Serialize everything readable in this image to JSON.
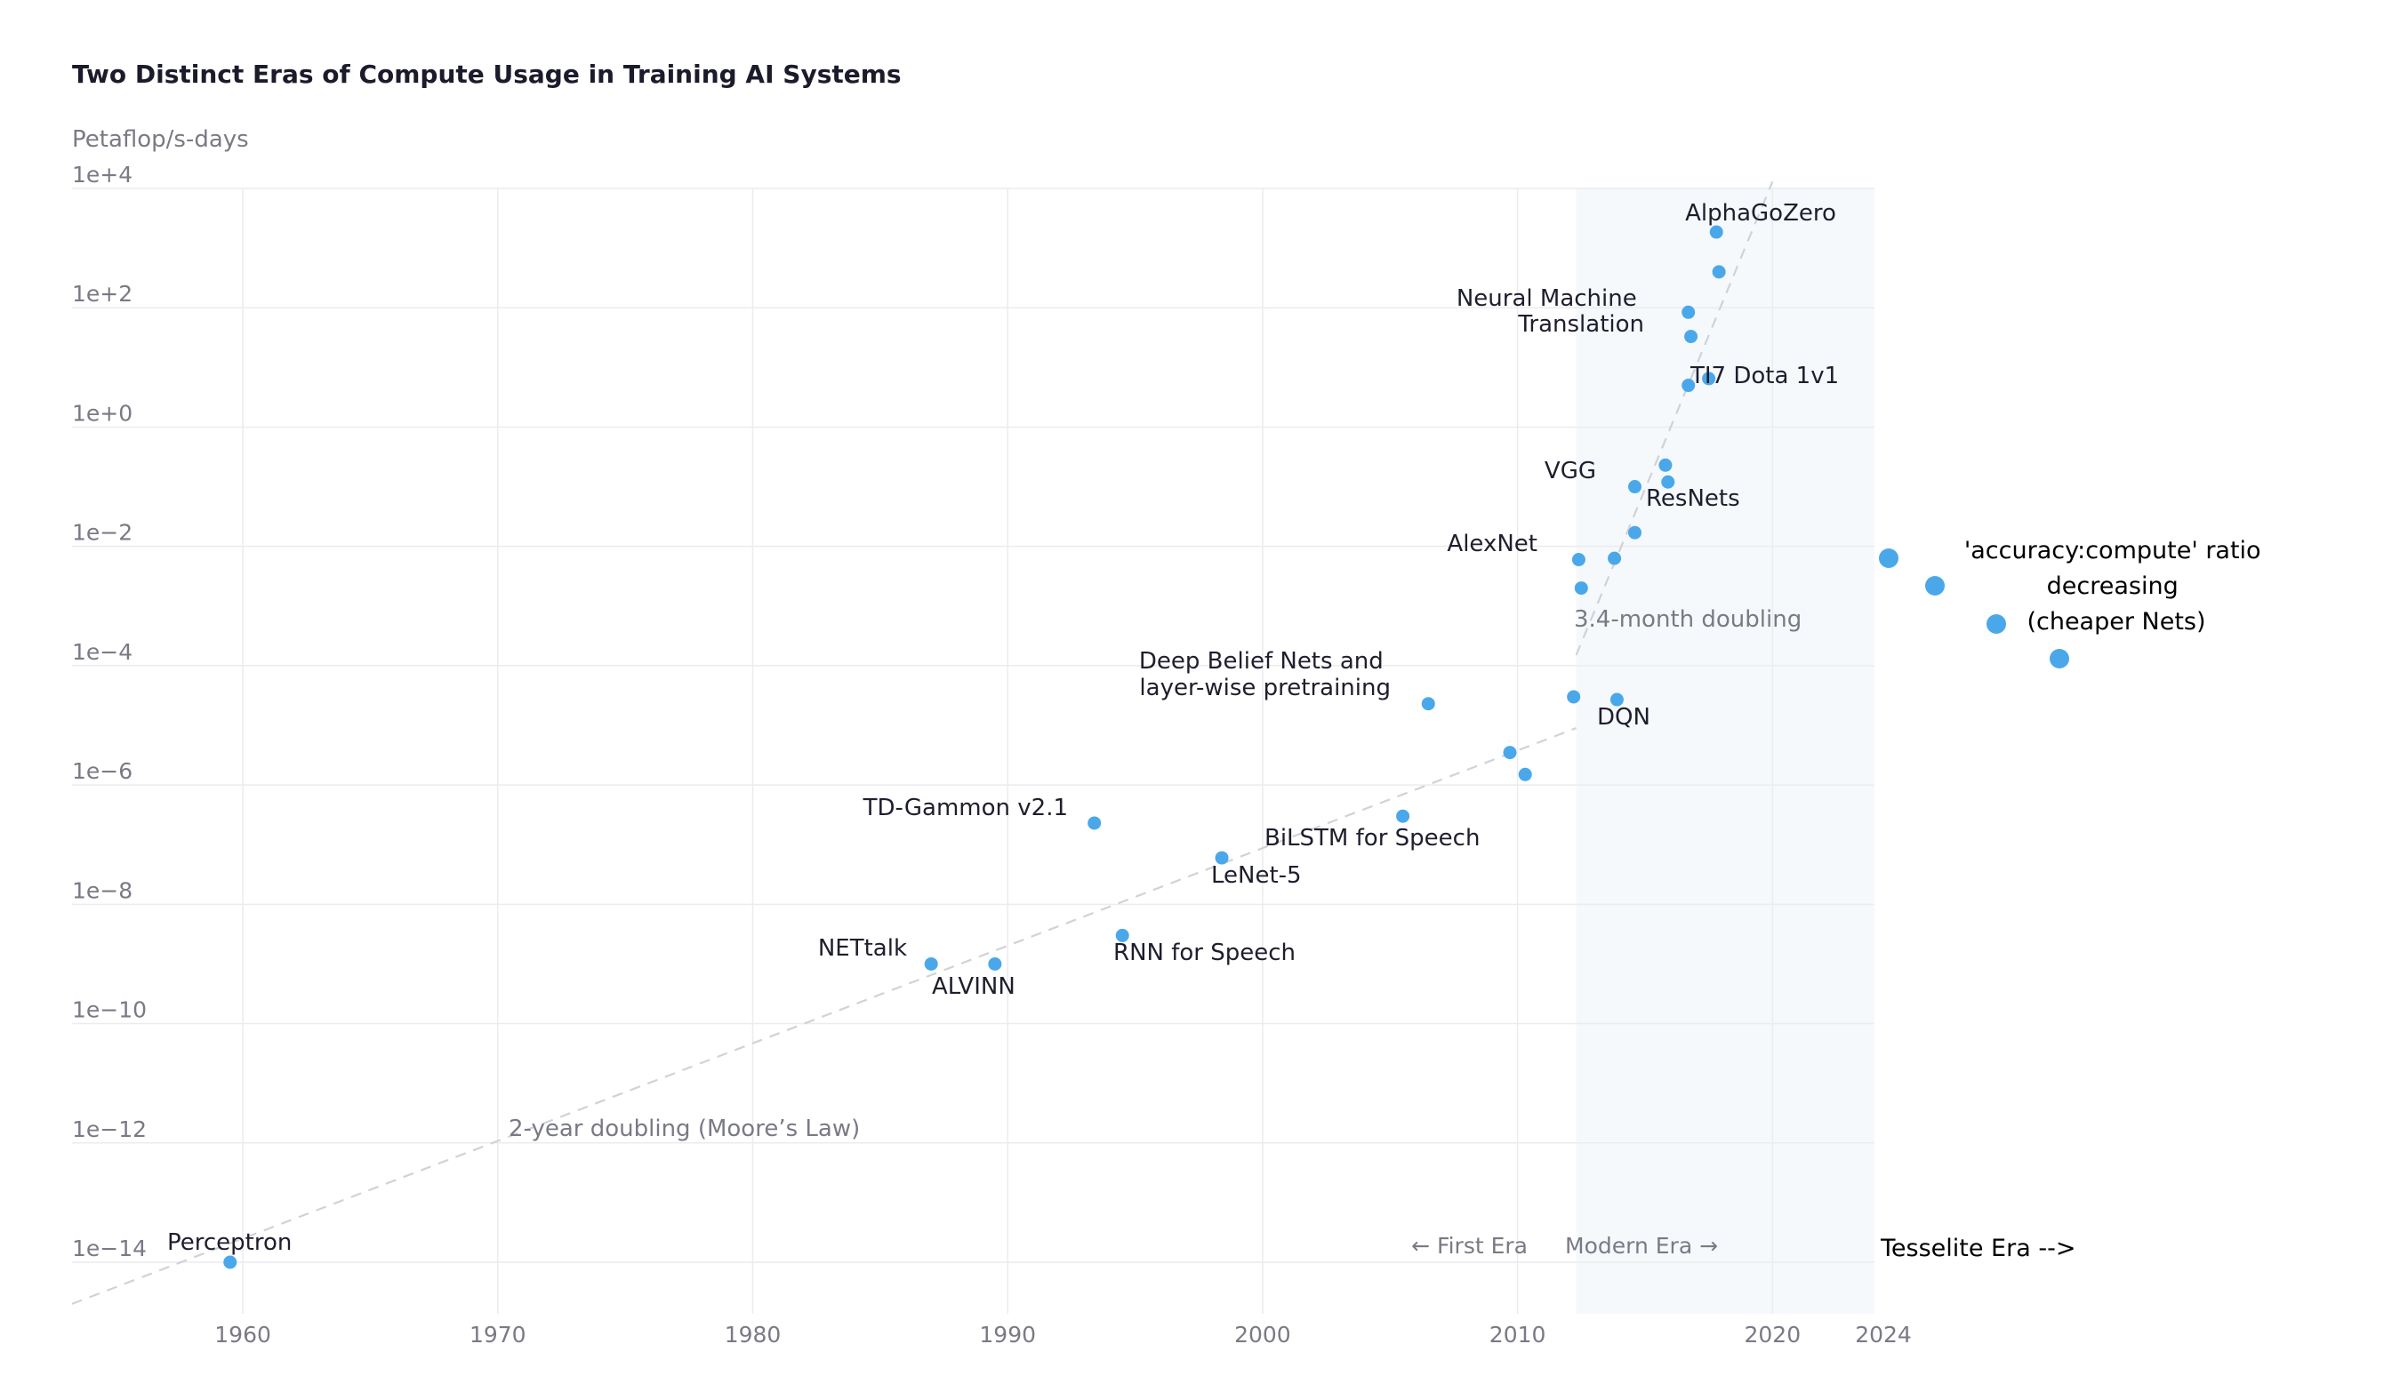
{
  "chart_data": {
    "type": "scatter",
    "title": "Two Distinct Eras of Compute Usage in Training AI Systems",
    "ylabel": "Petaflop/s-days",
    "y_scale": "log",
    "ylim": [
      1e-14,
      10000.0
    ],
    "xlim": [
      1953.3,
      2024
    ],
    "x_ticks": [
      {
        "value": 1960,
        "label": "1960"
      },
      {
        "value": 1970,
        "label": "1970"
      },
      {
        "value": 1980,
        "label": "1980"
      },
      {
        "value": 1990,
        "label": "1990"
      },
      {
        "value": 2000,
        "label": "2000"
      },
      {
        "value": 2010,
        "label": "2010"
      },
      {
        "value": 2020,
        "label": "2020"
      },
      {
        "value": 2024,
        "label": "2024",
        "style": "bold"
      }
    ],
    "y_ticks": [
      {
        "value": 10000.0,
        "label": "1e+4"
      },
      {
        "value": 100.0,
        "label": "1e+2"
      },
      {
        "value": 1.0,
        "label": "1e+0"
      },
      {
        "value": 0.01,
        "label": "1e−2"
      },
      {
        "value": 0.0001,
        "label": "1e−4"
      },
      {
        "value": 1e-06,
        "label": "1e−6"
      },
      {
        "value": 1e-08,
        "label": "1e−8"
      },
      {
        "value": 1e-10,
        "label": "1e−10"
      },
      {
        "value": 1e-12,
        "label": "1e−12"
      },
      {
        "value": 1e-14,
        "label": "1e−14"
      }
    ],
    "grid": true,
    "point_color": "#4aa8ea",
    "points": [
      {
        "x": 1959.5,
        "y": 1e-14,
        "label": "Perceptron"
      },
      {
        "x": 1987.0,
        "y": 1e-09,
        "label": "NETtalk"
      },
      {
        "x": 1989.5,
        "y": 1e-09,
        "label": "ALVINN"
      },
      {
        "x": 1993.4,
        "y": 2.3e-07,
        "label": "TD-Gammon v2.1"
      },
      {
        "x": 1994.5,
        "y": 3e-09,
        "label": "RNN for Speech"
      },
      {
        "x": 1998.4,
        "y": 6e-08,
        "label": "LeNet-5"
      },
      {
        "x": 2005.5,
        "y": 3e-07,
        "label": "BiLSTM for Speech"
      },
      {
        "x": 2006.5,
        "y": 2.3e-05,
        "label": "Deep Belief Nets and layer-wise pretraining"
      },
      {
        "x": 2009.7,
        "y": 3.5e-06,
        "label": ""
      },
      {
        "x": 2010.3,
        "y": 1.5e-06,
        "label": ""
      },
      {
        "x": 2012.2,
        "y": 3e-05,
        "label": ""
      },
      {
        "x": 2013.9,
        "y": 2.7e-05,
        "label": "DQN"
      },
      {
        "x": 2012.4,
        "y": 0.006,
        "label": "AlexNet"
      },
      {
        "x": 2012.5,
        "y": 0.002,
        "label": ""
      },
      {
        "x": 2013.8,
        "y": 0.0063,
        "label": ""
      },
      {
        "x": 2014.6,
        "y": 0.017,
        "label": ""
      },
      {
        "x": 2014.6,
        "y": 0.1,
        "label": "VGG"
      },
      {
        "x": 2015.8,
        "y": 0.23,
        "label": ""
      },
      {
        "x": 2015.9,
        "y": 0.12,
        "label": "ResNets"
      },
      {
        "x": 2016.7,
        "y": 5,
        "label": ""
      },
      {
        "x": 2016.7,
        "y": 84,
        "label": "Neural Machine Translation"
      },
      {
        "x": 2016.8,
        "y": 33,
        "label": ""
      },
      {
        "x": 2017.5,
        "y": 6.5,
        "label": "TI7 Dota 1v1"
      },
      {
        "x": 2017.9,
        "y": 400,
        "label": ""
      },
      {
        "x": 2017.8,
        "y": 1860,
        "label": "AlphaGoZero"
      }
    ],
    "trend_lines": [
      {
        "label": "2-year doubling (Moore’s Law)",
        "from": {
          "x": 1953.3,
          "y": 2e-15
        },
        "to": {
          "x": 2012.3,
          "y": 9e-06
        }
      },
      {
        "label": "3.4-month doubling",
        "from": {
          "x": 2012.3,
          "y": 0.00015
        },
        "to": {
          "x": 2020.0,
          "y": 13000.0
        }
      }
    ],
    "eras": {
      "modern_era_shading": {
        "from": 2012.3,
        "to": 2024,
        "color": "#f5f9fb"
      },
      "first_era_label": "← First Era",
      "modern_era_label": "Modern Era →",
      "tesselite_label": "Tesselite Era -->"
    },
    "tesselite_points": {
      "annotation": [
        "'accuracy:compute' ratio",
        "decreasing",
        "(cheaper Nets)"
      ]
    }
  }
}
